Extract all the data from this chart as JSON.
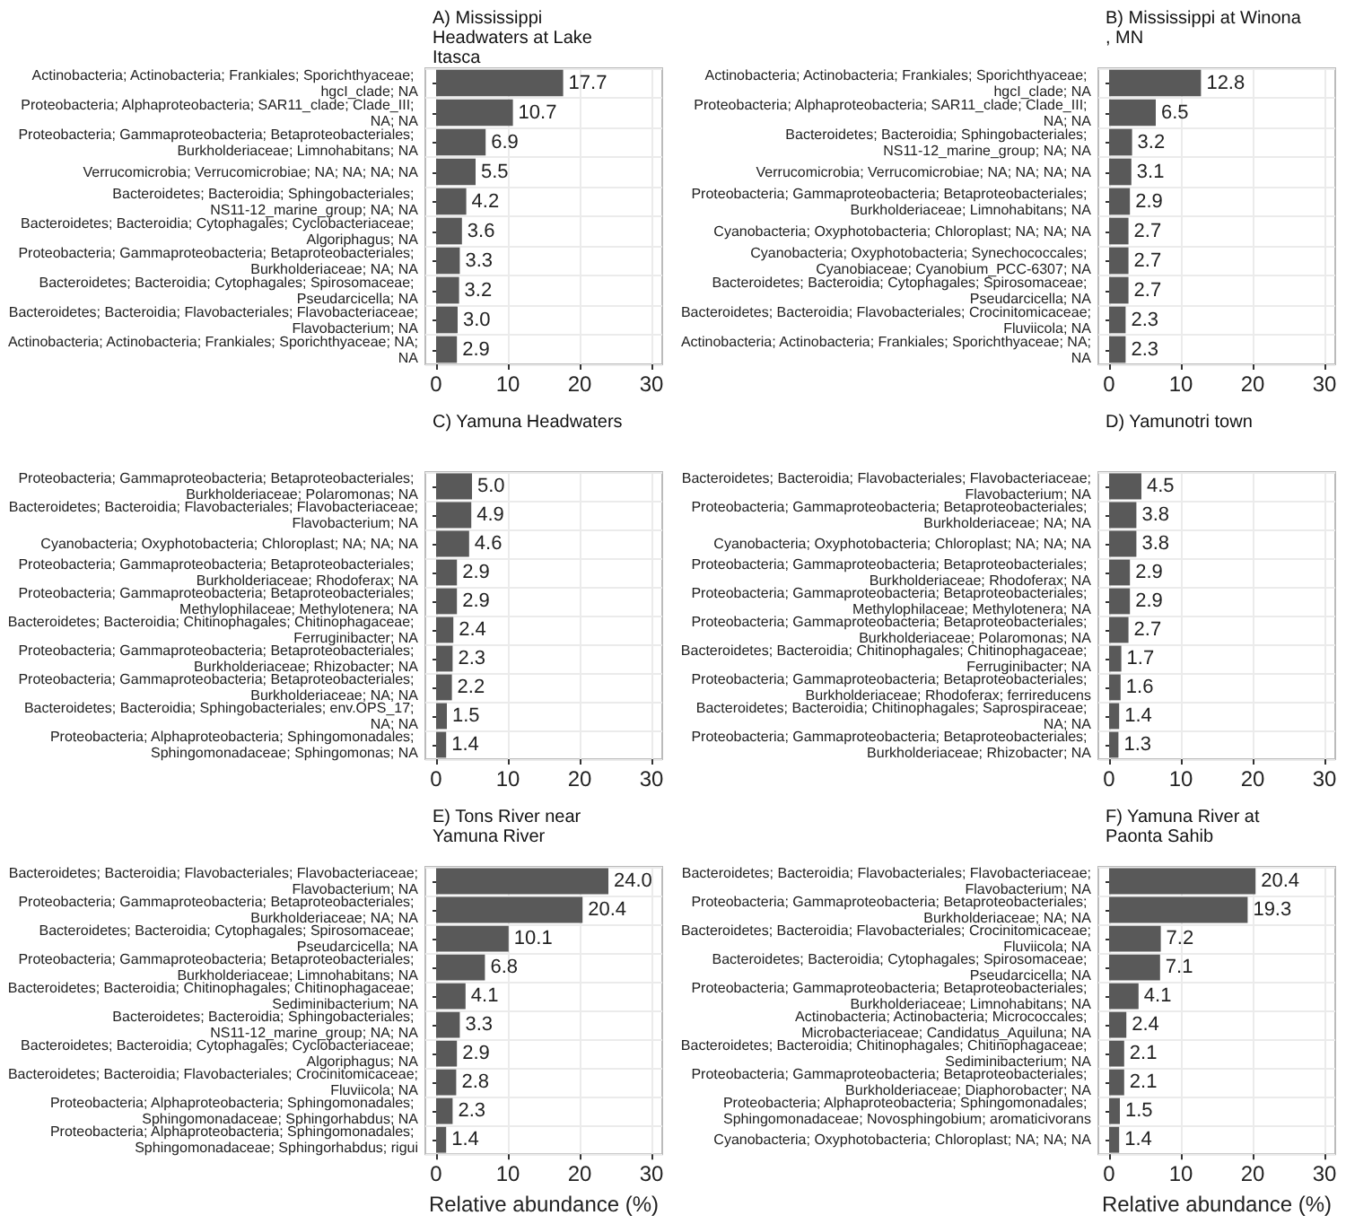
{
  "chart_data": [
    {
      "type": "bar",
      "orientation": "horizontal",
      "title": "A) Mississippi Headwaters at Lake Itasca",
      "color": "#595959",
      "grid": true,
      "xlim": [
        -1.5,
        31.5
      ],
      "xticks": [
        0,
        10,
        20,
        30
      ],
      "categories": [
        "Actinobacteria; Actinobacteria; Frankiales; Sporichthyaceae; hgcI_clade; NA",
        "Proteobacteria; Alphaproteobacteria; SAR11_clade; Clade_III; NA; NA",
        "Proteobacteria; Gammaproteobacteria; Betaproteobacteriales; Burkholderiaceae; Limnohabitans; NA",
        "Verrucomicrobia; Verrucomicrobiae; NA; NA; NA; NA",
        "Bacteroidetes; Bacteroidia; Sphingobacteriales; NS11-12_marine_group; NA; NA",
        "Bacteroidetes; Bacteroidia; Cytophagales; Cyclobacteriaceae; Algoriphagus; NA",
        "Proteobacteria; Gammaproteobacteria; Betaproteobacteriales; Burkholderiaceae; NA; NA",
        "Bacteroidetes; Bacteroidia; Cytophagales; Spirosomaceae; Pseudarcicella; NA",
        "Bacteroidetes; Bacteroidia; Flavobacteriales; Flavobacteriaceae; Flavobacterium; NA",
        "Actinobacteria; Actinobacteria; Frankiales; Sporichthyaceae; NA; NA"
      ],
      "values": [
        17.7,
        10.7,
        6.9,
        5.5,
        4.2,
        3.6,
        3.3,
        3.2,
        3.0,
        2.9
      ],
      "value_labels": [
        "17.7",
        "10.7",
        "6.9",
        "5.5",
        "4.2",
        "3.6",
        "3.3",
        "3.2",
        "3.0",
        "2.9"
      ]
    },
    {
      "type": "bar",
      "orientation": "horizontal",
      "title": "B) Mississippi at Winona, MN",
      "color": "#595959",
      "grid": true,
      "xlim": [
        -1.5,
        31.5
      ],
      "xticks": [
        0,
        10,
        20,
        30
      ],
      "categories": [
        "Actinobacteria; Actinobacteria; Frankiales; Sporichthyaceae; hgcI_clade; NA",
        "Proteobacteria; Alphaproteobacteria; SAR11_clade; Clade_III; NA; NA",
        "Bacteroidetes; Bacteroidia; Sphingobacteriales; NS11-12_marine_group; NA; NA",
        "Verrucomicrobia; Verrucomicrobiae; NA; NA; NA; NA",
        "Proteobacteria; Gammaproteobacteria; Betaproteobacteriales; Burkholderiaceae; Limnohabitans; NA",
        "Cyanobacteria; Oxyphotobacteria; Chloroplast; NA; NA; NA",
        "Cyanobacteria; Oxyphotobacteria; Synechococcales; Cyanobiaceae; Cyanobium_PCC-6307; NA",
        "Bacteroidetes; Bacteroidia; Cytophagales; Spirosomaceae; Pseudarcicella; NA",
        "Bacteroidetes; Bacteroidia; Flavobacteriales; Crocinitomicaceae; Fluviicola; NA",
        "Actinobacteria; Actinobacteria; Frankiales; Sporichthyaceae; NA; NA"
      ],
      "values": [
        12.8,
        6.5,
        3.2,
        3.1,
        2.9,
        2.7,
        2.7,
        2.7,
        2.3,
        2.3
      ],
      "value_labels": [
        "12.8",
        "6.5",
        "3.2",
        "3.1",
        "2.9",
        "2.7",
        "2.7",
        "2.7",
        "2.3",
        "2.3"
      ]
    },
    {
      "type": "bar",
      "orientation": "horizontal",
      "title": "C) Yamuna Headwaters",
      "color": "#595959",
      "grid": true,
      "xlim": [
        -1.5,
        31.5
      ],
      "xticks": [
        0,
        10,
        20,
        30
      ],
      "categories": [
        "Proteobacteria; Gammaproteobacteria; Betaproteobacteriales; Burkholderiaceae; Polaromonas; NA",
        "Bacteroidetes; Bacteroidia; Flavobacteriales; Flavobacteriaceae; Flavobacterium; NA",
        "Cyanobacteria; Oxyphotobacteria; Chloroplast; NA; NA; NA",
        "Proteobacteria; Gammaproteobacteria; Betaproteobacteriales; Burkholderiaceae; Rhodoferax; NA",
        "Proteobacteria; Gammaproteobacteria; Betaproteobacteriales; Methylophilaceae; Methylotenera; NA",
        "Bacteroidetes; Bacteroidia; Chitinophagales; Chitinophagaceae; Ferruginibacter; NA",
        "Proteobacteria; Gammaproteobacteria; Betaproteobacteriales; Burkholderiaceae; Rhizobacter; NA",
        "Proteobacteria; Gammaproteobacteria; Betaproteobacteriales; Burkholderiaceae; NA; NA",
        "Bacteroidetes; Bacteroidia; Sphingobacteriales; env.OPS_17; NA; NA",
        "Proteobacteria; Alphaproteobacteria; Sphingomonadales; Sphingomonadaceae; Sphingomonas; NA"
      ],
      "values": [
        5.0,
        4.9,
        4.6,
        2.9,
        2.9,
        2.4,
        2.3,
        2.2,
        1.5,
        1.4
      ],
      "value_labels": [
        "5.0",
        "4.9",
        "4.6",
        "2.9",
        "2.9",
        "2.4",
        "2.3",
        "2.2",
        "1.5",
        "1.4"
      ]
    },
    {
      "type": "bar",
      "orientation": "horizontal",
      "title": "D) Yamunotri town",
      "color": "#595959",
      "grid": true,
      "xlim": [
        -1.5,
        31.5
      ],
      "xticks": [
        0,
        10,
        20,
        30
      ],
      "categories": [
        "Bacteroidetes; Bacteroidia; Flavobacteriales; Flavobacteriaceae; Flavobacterium; NA",
        "Proteobacteria; Gammaproteobacteria; Betaproteobacteriales; Burkholderiaceae; NA; NA",
        "Cyanobacteria; Oxyphotobacteria; Chloroplast; NA; NA; NA",
        "Proteobacteria; Gammaproteobacteria; Betaproteobacteriales; Burkholderiaceae; Rhodoferax; NA",
        "Proteobacteria; Gammaproteobacteria; Betaproteobacteriales; Methylophilaceae; Methylotenera; NA",
        "Proteobacteria; Gammaproteobacteria; Betaproteobacteriales; Burkholderiaceae; Polaromonas; NA",
        "Bacteroidetes; Bacteroidia; Chitinophagales; Chitinophagaceae; Ferruginibacter; NA",
        "Proteobacteria; Gammaproteobacteria; Betaproteobacteriales; Burkholderiaceae; Rhodoferax; ferrireducens",
        "Bacteroidetes; Bacteroidia; Chitinophagales; Saprospiraceae; NA; NA",
        "Proteobacteria; Gammaproteobacteria; Betaproteobacteriales; Burkholderiaceae; Rhizobacter; NA"
      ],
      "values": [
        4.5,
        3.8,
        3.8,
        2.9,
        2.9,
        2.7,
        1.7,
        1.6,
        1.4,
        1.3
      ],
      "value_labels": [
        "4.5",
        "3.8",
        "3.8",
        "2.9",
        "2.9",
        "2.7",
        "1.7",
        "1.6",
        "1.4",
        "1.3"
      ]
    },
    {
      "type": "bar",
      "orientation": "horizontal",
      "title": "E) Tons River near Yamuna River",
      "xlabel": "Relative abundance (%)",
      "color": "#595959",
      "grid": true,
      "xlim": [
        -1.5,
        31.5
      ],
      "xticks": [
        0,
        10,
        20,
        30
      ],
      "categories": [
        "Bacteroidetes; Bacteroidia; Flavobacteriales; Flavobacteriaceae; Flavobacterium; NA",
        "Proteobacteria; Gammaproteobacteria; Betaproteobacteriales; Burkholderiaceae; NA; NA",
        "Bacteroidetes; Bacteroidia; Cytophagales; Spirosomaceae; Pseudarcicella; NA",
        "Proteobacteria; Gammaproteobacteria; Betaproteobacteriales; Burkholderiaceae; Limnohabitans; NA",
        "Bacteroidetes; Bacteroidia; Chitinophagales; Chitinophagaceae; Sediminibacterium; NA",
        "Bacteroidetes; Bacteroidia; Sphingobacteriales; NS11-12_marine_group; NA; NA",
        "Bacteroidetes; Bacteroidia; Cytophagales; Cyclobacteriaceae; Algoriphagus; NA",
        "Bacteroidetes; Bacteroidia; Flavobacteriales; Crocinitomicaceae; Fluviicola; NA",
        "Proteobacteria; Alphaproteobacteria; Sphingomonadales; Sphingomonadaceae; Sphingorhabdus; NA",
        "Proteobacteria; Alphaproteobacteria; Sphingomonadales; Sphingomonadaceae; Sphingorhabdus; rigui"
      ],
      "values": [
        24.0,
        20.4,
        10.1,
        6.8,
        4.1,
        3.3,
        2.9,
        2.8,
        2.3,
        1.4
      ],
      "value_labels": [
        "24.0",
        "20.4",
        "10.1",
        "6.8",
        "4.1",
        "3.3",
        "2.9",
        "2.8",
        "2.3",
        "1.4"
      ]
    },
    {
      "type": "bar",
      "orientation": "horizontal",
      "title": "F) Yamuna River at Paonta Sahib",
      "xlabel": "Relative abundance (%)",
      "color": "#595959",
      "grid": true,
      "xlim": [
        -1.5,
        31.5
      ],
      "xticks": [
        0,
        10,
        20,
        30
      ],
      "categories": [
        "Bacteroidetes; Bacteroidia; Flavobacteriales; Flavobacteriaceae; Flavobacterium; NA",
        "Proteobacteria; Gammaproteobacteria; Betaproteobacteriales; Burkholderiaceae; NA; NA",
        "Bacteroidetes; Bacteroidia; Flavobacteriales; Crocinitomicaceae; Fluviicola; NA",
        "Bacteroidetes; Bacteroidia; Cytophagales; Spirosomaceae; Pseudarcicella; NA",
        "Proteobacteria; Gammaproteobacteria; Betaproteobacteriales; Burkholderiaceae; Limnohabitans; NA",
        "Actinobacteria; Actinobacteria; Micrococcales; Microbacteriaceae; Candidatus_Aquiluna; NA",
        "Bacteroidetes; Bacteroidia; Chitinophagales; Chitinophagaceae; Sediminibacterium; NA",
        "Proteobacteria; Gammaproteobacteria; Betaproteobacteriales; Burkholderiaceae; Diaphorobacter; NA",
        "Proteobacteria; Alphaproteobacteria; Sphingomonadales; Sphingomonadaceae; Novosphingobium; aromaticivorans",
        "Cyanobacteria; Oxyphotobacteria; Chloroplast; NA; NA; NA"
      ],
      "values": [
        20.4,
        19.3,
        7.2,
        7.1,
        4.1,
        2.4,
        2.1,
        2.1,
        1.5,
        1.4
      ],
      "value_labels": [
        "20.4",
        "19.3",
        "7.2",
        "7.1",
        "4.1",
        "2.4",
        "2.1",
        "2.1",
        "1.5",
        "1.4"
      ]
    }
  ]
}
